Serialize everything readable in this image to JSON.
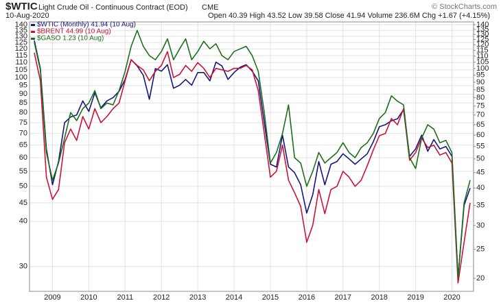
{
  "chart_data": {
    "type": "line",
    "symbol": "$WTIC",
    "title": "Light Crude Oil - Continuous Contract (EOD)",
    "exchange": "CME",
    "date": "10-Aug-2020",
    "quote": "Open 40.39  High 43.52  Low 39.58  Close 41.94  Volume 236.6M  Chg +1.67 (+4.15%)",
    "credit": "© StockCharts.com",
    "log_scale": true,
    "grid": true,
    "categories": [
      null,
      null,
      null,
      "2009",
      null,
      null,
      null,
      null,
      null,
      "2010",
      null,
      null,
      null,
      null,
      null,
      "2011",
      null,
      null,
      null,
      null,
      null,
      "2012",
      null,
      null,
      null,
      null,
      null,
      "2013",
      null,
      null,
      null,
      null,
      null,
      "2014",
      null,
      null,
      null,
      null,
      null,
      "2015",
      null,
      null,
      null,
      null,
      null,
      "2016",
      null,
      null,
      null,
      null,
      null,
      "2017",
      null,
      null,
      null,
      null,
      null,
      "2018",
      null,
      null,
      null,
      null,
      null,
      "2019",
      null,
      null,
      null,
      null,
      null,
      "2020",
      null,
      null,
      null
    ],
    "ylim": [
      25.6,
      142.5
    ],
    "yticks": [
      30,
      40,
      45,
      50,
      55,
      60,
      65,
      70,
      75,
      80,
      85,
      90,
      95,
      100,
      105,
      110,
      115,
      120,
      125,
      130,
      135,
      140
    ],
    "y2lim": [
      18.1,
      143
    ],
    "y2ticks": [
      20,
      25,
      30,
      35,
      40,
      45,
      50,
      55,
      60,
      65,
      70,
      75,
      80,
      85,
      90,
      95,
      100,
      105,
      110,
      115,
      120,
      125,
      130,
      135,
      140
    ],
    "series": [
      {
        "name": "$WTIC (Monthly) 41.94 (10 Aug)",
        "color": "#14147a",
        "axis": "y2",
        "values": [
          124,
          100,
          54,
          41,
          49,
          66,
          69,
          70,
          78,
          72,
          83,
          74,
          78,
          80,
          84,
          92,
          107,
          102,
          95,
          79,
          100,
          98,
          103,
          86,
          88,
          92,
          88,
          97,
          97,
          91,
          105,
          102,
          92,
          97,
          101,
          103,
          98,
          91,
          66,
          48,
          47,
          60,
          47,
          45,
          41,
          33,
          38,
          49,
          41,
          48,
          49,
          52,
          50,
          48,
          50,
          52,
          57,
          64,
          65,
          67,
          68,
          73,
          51,
          54,
          60,
          53,
          58,
          54,
          55,
          51,
          20,
          35,
          40
        ]
      },
      {
        "name": "$BRENT 44.99 (10 Aug)",
        "color": "#cc1136",
        "values": [
          117,
          98,
          53,
          46,
          49,
          66,
          72,
          67,
          78,
          72,
          82,
          75,
          78,
          82,
          85,
          98,
          112,
          108,
          105,
          98,
          104,
          108,
          118,
          100,
          102,
          108,
          104,
          110,
          106,
          100,
          106,
          105,
          104,
          106,
          106,
          108,
          105,
          92,
          70,
          53,
          55,
          65,
          52,
          48,
          44,
          35,
          39,
          49,
          42,
          49,
          50,
          55,
          53,
          50,
          52,
          57,
          63,
          69,
          70,
          77,
          74,
          82,
          59,
          62,
          68,
          64,
          65,
          61,
          62,
          58,
          27,
          35,
          45
        ]
      },
      {
        "name": "$GASO 1.23 (10 Aug)",
        "color": "#1b6e1b",
        "values": [
          125,
          105,
          62,
          52,
          58,
          68,
          80,
          76,
          82,
          85,
          92,
          82,
          85,
          84,
          92,
          104,
          122,
          135,
          122,
          115,
          112,
          118,
          128,
          112,
          120,
          128,
          112,
          118,
          126,
          120,
          124,
          115,
          112,
          118,
          120,
          122,
          115,
          104,
          80,
          58,
          62,
          70,
          84,
          60,
          58,
          50,
          55,
          62,
          58,
          60,
          62,
          66,
          62,
          60,
          64,
          66,
          70,
          77,
          80,
          89,
          86,
          84,
          60,
          56,
          68,
          74,
          72,
          66,
          67,
          62,
          28,
          45,
          52
        ]
      }
    ]
  }
}
